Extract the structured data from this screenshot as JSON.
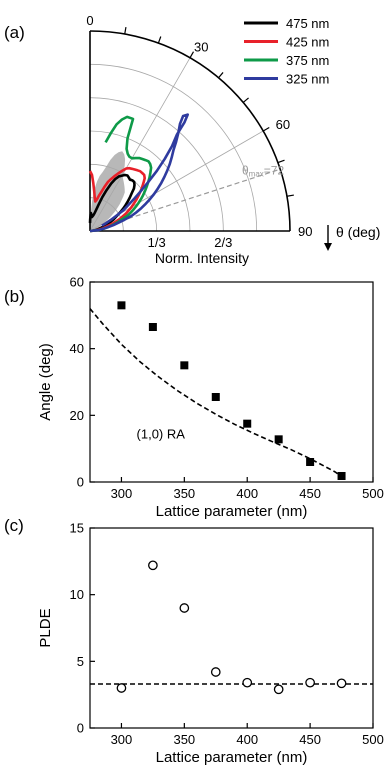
{
  "chart_data": [
    {
      "panel_label": "(a)",
      "type": "polar-line",
      "radial_label": "Norm. Intensity",
      "radial_ticks": [
        "1/3",
        "2/3"
      ],
      "angle_label": "θ (deg)",
      "angle_ticks": [
        "0",
        "30",
        "60",
        "90"
      ],
      "annotation": {
        "prefix": "θ",
        "sub": "max",
        "value": "=72",
        "angle": 72
      },
      "colors": {
        "475": "#000000",
        "425": "#e8212a",
        "375": "#0e9a48",
        "325": "#2f3b9f",
        "shade": "#b8b8b8",
        "ref": "#9a9a9a"
      },
      "series": [
        {
          "name": "475 nm",
          "key": "475",
          "points": [
            [
              0,
              0.04
            ],
            [
              1,
              0.06
            ],
            [
              2,
              0.08
            ],
            [
              3,
              0.09
            ],
            [
              4,
              0.085
            ],
            [
              6,
              0.07
            ],
            [
              8,
              0.07
            ],
            [
              10,
              0.075
            ],
            [
              12,
              0.08
            ],
            [
              14,
              0.09
            ],
            [
              16,
              0.11
            ],
            [
              18,
              0.14
            ],
            [
              20,
              0.18
            ],
            [
              22,
              0.22
            ],
            [
              24,
              0.26
            ],
            [
              26,
              0.29
            ],
            [
              28,
              0.31
            ],
            [
              30,
              0.32
            ],
            [
              32,
              0.33
            ],
            [
              34,
              0.335
            ],
            [
              36,
              0.33
            ],
            [
              38,
              0.325
            ],
            [
              40,
              0.33
            ],
            [
              42,
              0.33
            ],
            [
              44,
              0.32
            ],
            [
              46,
              0.305
            ],
            [
              48,
              0.28
            ],
            [
              50,
              0.26
            ],
            [
              52,
              0.24
            ],
            [
              54,
              0.22
            ],
            [
              56,
              0.2
            ],
            [
              58,
              0.18
            ],
            [
              60,
              0.16
            ],
            [
              64,
              0.13
            ],
            [
              68,
              0.1
            ],
            [
              72,
              0.07
            ],
            [
              78,
              0.04
            ],
            [
              84,
              0.02
            ],
            [
              90,
              0
            ]
          ]
        },
        {
          "name": "425 nm",
          "key": "425",
          "points": [
            [
              0,
              0.3
            ],
            [
              2,
              0.28
            ],
            [
              4,
              0.24
            ],
            [
              6,
              0.2
            ],
            [
              8,
              0.17
            ],
            [
              10,
              0.15
            ],
            [
              12,
              0.16
            ],
            [
              14,
              0.18
            ],
            [
              16,
              0.2
            ],
            [
              18,
              0.23
            ],
            [
              20,
              0.26
            ],
            [
              22,
              0.28
            ],
            [
              24,
              0.3
            ],
            [
              26,
              0.32
            ],
            [
              28,
              0.34
            ],
            [
              30,
              0.36
            ],
            [
              32,
              0.37
            ],
            [
              34,
              0.375
            ],
            [
              36,
              0.38
            ],
            [
              38,
              0.385
            ],
            [
              40,
              0.39
            ],
            [
              42,
              0.39
            ],
            [
              44,
              0.39
            ],
            [
              46,
              0.38
            ],
            [
              48,
              0.36
            ],
            [
              50,
              0.34
            ],
            [
              52,
              0.32
            ],
            [
              54,
              0.3
            ],
            [
              56,
              0.28
            ],
            [
              60,
              0.24
            ],
            [
              64,
              0.2
            ],
            [
              68,
              0.16
            ],
            [
              72,
              0.12
            ],
            [
              78,
              0.07
            ],
            [
              84,
              0.03
            ],
            [
              90,
              0
            ]
          ]
        },
        {
          "name": "375 nm",
          "key": "375",
          "points": [
            [
              10,
              0.45
            ],
            [
              12,
              0.5
            ],
            [
              14,
              0.55
            ],
            [
              16,
              0.58
            ],
            [
              18,
              0.6
            ],
            [
              20,
              0.6
            ],
            [
              21,
              0.6
            ],
            [
              22,
              0.5
            ],
            [
              24,
              0.45
            ],
            [
              26,
              0.43
            ],
            [
              28,
              0.42
            ],
            [
              30,
              0.42
            ],
            [
              32,
              0.43
            ],
            [
              34,
              0.44
            ],
            [
              36,
              0.445
            ],
            [
              38,
              0.45
            ],
            [
              40,
              0.455
            ],
            [
              42,
              0.45
            ],
            [
              44,
              0.44
            ],
            [
              46,
              0.42
            ],
            [
              48,
              0.4
            ],
            [
              50,
              0.38
            ],
            [
              52,
              0.36
            ],
            [
              54,
              0.34
            ],
            [
              56,
              0.32
            ],
            [
              58,
              0.3
            ],
            [
              60,
              0.28
            ],
            [
              62,
              0.26
            ],
            [
              64,
              0.24
            ],
            [
              66,
              0.22
            ],
            [
              68,
              0.2
            ],
            [
              70,
              0.17
            ],
            [
              72,
              0.15
            ],
            [
              74,
              0.13
            ],
            [
              76,
              0.11
            ],
            [
              78,
              0.09
            ],
            [
              80,
              0.07
            ],
            [
              84,
              0.04
            ],
            [
              90,
              0
            ]
          ]
        },
        {
          "name": "325 nm",
          "key": "325",
          "points": [
            [
              66,
              0.065
            ],
            [
              64,
              0.09
            ],
            [
              62,
              0.12
            ],
            [
              60,
              0.15
            ],
            [
              58,
              0.2
            ],
            [
              56,
              0.23
            ],
            [
              54,
              0.27
            ],
            [
              52,
              0.32
            ],
            [
              50,
              0.38
            ],
            [
              48,
              0.45
            ],
            [
              46,
              0.52
            ],
            [
              44,
              0.59
            ],
            [
              42,
              0.65
            ],
            [
              41,
              0.72
            ],
            [
              40,
              0.76
            ],
            [
              39,
              0.74
            ],
            [
              40,
              0.7
            ],
            [
              42,
              0.66
            ],
            [
              44,
              0.62
            ],
            [
              46,
              0.58
            ],
            [
              48,
              0.55
            ],
            [
              50,
              0.52
            ],
            [
              52,
              0.49
            ],
            [
              54,
              0.46
            ],
            [
              56,
              0.43
            ],
            [
              58,
              0.4
            ],
            [
              60,
              0.37
            ],
            [
              62,
              0.34
            ],
            [
              64,
              0.31
            ],
            [
              66,
              0.28
            ],
            [
              68,
              0.25
            ],
            [
              70,
              0.22
            ],
            [
              72,
              0.18
            ],
            [
              76,
              0.12
            ],
            [
              80,
              0.07
            ],
            [
              84,
              0.04
            ],
            [
              90,
              0
            ]
          ]
        }
      ],
      "shade_points": [
        [
          0,
          0.005
        ],
        [
          2,
          0.08
        ],
        [
          4,
          0.15
        ],
        [
          6,
          0.21
        ],
        [
          8,
          0.25
        ],
        [
          10,
          0.28
        ],
        [
          12,
          0.3
        ],
        [
          14,
          0.33
        ],
        [
          16,
          0.37
        ],
        [
          18,
          0.4
        ],
        [
          20,
          0.42
        ],
        [
          22,
          0.43
        ],
        [
          24,
          0.42
        ],
        [
          26,
          0.4
        ],
        [
          28,
          0.37
        ],
        [
          30,
          0.33
        ],
        [
          32,
          0.31
        ],
        [
          34,
          0.3
        ],
        [
          36,
          0.29
        ],
        [
          38,
          0.28
        ],
        [
          40,
          0.27
        ],
        [
          42,
          0.26
        ],
        [
          44,
          0.24
        ],
        [
          48,
          0.2
        ],
        [
          52,
          0.16
        ],
        [
          56,
          0.12
        ],
        [
          60,
          0.08
        ],
        [
          64,
          0.06
        ],
        [
          70,
          0.04
        ],
        [
          80,
          0.02
        ],
        [
          90,
          0
        ]
      ]
    },
    {
      "panel_label": "(b)",
      "type": "scatter",
      "xlabel": "Lattice parameter (nm)",
      "ylabel": "Angle (deg)",
      "xlim": [
        275,
        500
      ],
      "ylim": [
        0,
        60
      ],
      "xticks": [
        300,
        350,
        400,
        450,
        500
      ],
      "yticks": [
        0,
        20,
        40,
        60
      ],
      "points": [
        [
          300,
          53
        ],
        [
          325,
          46.5
        ],
        [
          350,
          35
        ],
        [
          375,
          25.5
        ],
        [
          400,
          17.5
        ],
        [
          425,
          12.8
        ],
        [
          450,
          6
        ],
        [
          475,
          1.8
        ]
      ],
      "curve_label": "(1,0) RA",
      "curve_points": [
        [
          275,
          52
        ],
        [
          285,
          47.5
        ],
        [
          300,
          41.3
        ],
        [
          315,
          36
        ],
        [
          330,
          31.4
        ],
        [
          345,
          27.3
        ],
        [
          360,
          23.6
        ],
        [
          375,
          20.3
        ],
        [
          390,
          17.3
        ],
        [
          405,
          14.6
        ],
        [
          420,
          12.1
        ],
        [
          435,
          9.7
        ],
        [
          450,
          7
        ],
        [
          460,
          5
        ],
        [
          470,
          3
        ],
        [
          477,
          1
        ]
      ]
    },
    {
      "panel_label": "(c)",
      "type": "scatter",
      "xlabel": "Lattice parameter (nm)",
      "ylabel": "PLDE",
      "xlim": [
        275,
        500
      ],
      "ylim": [
        0,
        15
      ],
      "xticks": [
        300,
        350,
        400,
        450,
        500
      ],
      "yticks": [
        0,
        5,
        10,
        15
      ],
      "points": [
        [
          300,
          3
        ],
        [
          325,
          12.2
        ],
        [
          350,
          9
        ],
        [
          375,
          4.2
        ],
        [
          400,
          3.4
        ],
        [
          425,
          2.9
        ],
        [
          450,
          3.4
        ],
        [
          475,
          3.35
        ]
      ],
      "ref_line_y": 3.3
    }
  ]
}
